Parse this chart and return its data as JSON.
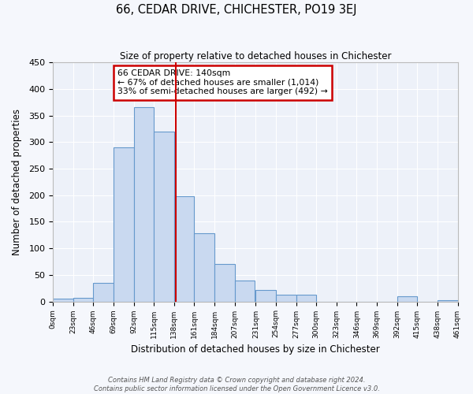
{
  "title": "66, CEDAR DRIVE, CHICHESTER, PO19 3EJ",
  "subtitle": "Size of property relative to detached houses in Chichester",
  "xlabel": "Distribution of detached houses by size in Chichester",
  "ylabel": "Number of detached properties",
  "bin_edges": [
    0,
    23,
    46,
    69,
    92,
    115,
    138,
    161,
    184,
    207,
    231,
    254,
    277,
    300,
    323,
    346,
    369,
    392,
    415,
    438,
    461
  ],
  "bar_heights": [
    5,
    7,
    35,
    290,
    365,
    320,
    198,
    128,
    70,
    40,
    21,
    12,
    12,
    0,
    0,
    0,
    0,
    10,
    0,
    3
  ],
  "bar_color": "#c9d9f0",
  "bar_edge_color": "#6699cc",
  "property_size": 140,
  "red_line_color": "#cc0000",
  "annotation_title": "66 CEDAR DRIVE: 140sqm",
  "annotation_line1": "← 67% of detached houses are smaller (1,014)",
  "annotation_line2": "33% of semi-detached houses are larger (492) →",
  "annotation_box_color": "#cc0000",
  "ylim": [
    0,
    450
  ],
  "background_color": "#edf1f9",
  "fig_background_color": "#f5f7fc",
  "grid_color": "#ffffff",
  "footer_line1": "Contains HM Land Registry data © Crown copyright and database right 2024.",
  "footer_line2": "Contains public sector information licensed under the Open Government Licence v3.0."
}
